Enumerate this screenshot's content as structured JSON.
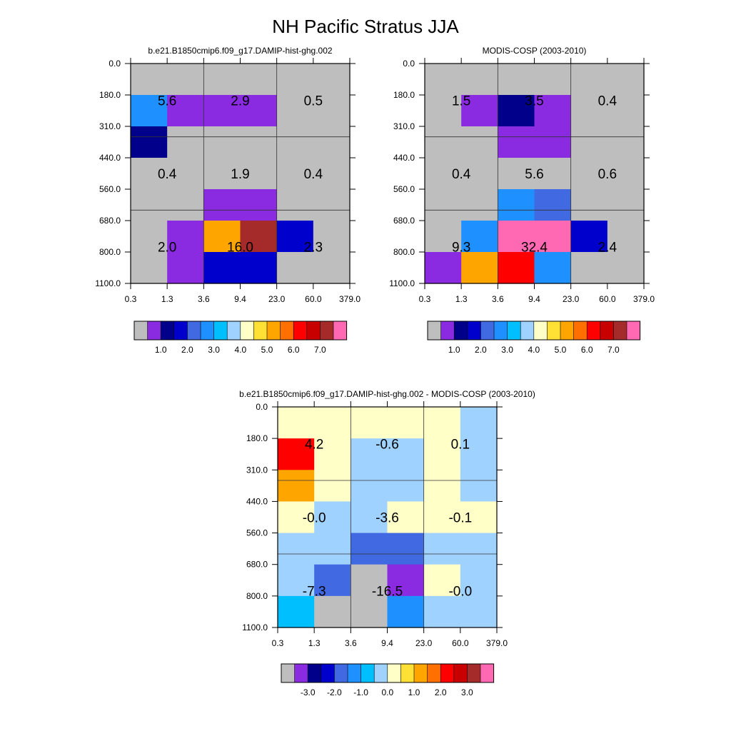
{
  "title": "NH Pacific Stratus JJA",
  "chart_data": {
    "type": "heatmap",
    "x_tick_labels": [
      "0.3",
      "1.3",
      "3.6",
      "9.4",
      "23.0",
      "60.0",
      "379.0"
    ],
    "y_tick_labels": [
      "0.0",
      "180.0",
      "310.0",
      "440.0",
      "560.0",
      "680.0",
      "800.0",
      "1100.0"
    ],
    "palette": [
      "#bebebe",
      "#8a2be2",
      "#00008b",
      "#0000cd",
      "#4169e1",
      "#1e90ff",
      "#00bfff",
      "#a0d2ff",
      "#ffffc8",
      "#ffe135",
      "#ffa500",
      "#ff7000",
      "#ff0000",
      "#c80000",
      "#a52a2a",
      "#ff69b4"
    ],
    "panels": [
      {
        "subtitle": "b.e21.B1850cmip6.f09_g17.DAMIP-hist-ghg.002",
        "colorbar_labels": [
          "1.0",
          "2.0",
          "3.0",
          "4.0",
          "5.0",
          "6.0",
          "7.0"
        ],
        "cells": [
          [
            0,
            0,
            0,
            0,
            0,
            0
          ],
          [
            5,
            1,
            1,
            1,
            0,
            0
          ],
          [
            2,
            0,
            0,
            0,
            0,
            0
          ],
          [
            0,
            0,
            0,
            0,
            0,
            0
          ],
          [
            0,
            0,
            1,
            1,
            0,
            0
          ],
          [
            0,
            1,
            10,
            14,
            3,
            0
          ],
          [
            0,
            1,
            3,
            3,
            0,
            0
          ]
        ],
        "block_values": [
          [
            "5.6",
            "2.9",
            "0.5"
          ],
          [
            "0.4",
            "1.9",
            "0.4"
          ],
          [
            "2.0",
            "16.0",
            "2.3"
          ]
        ]
      },
      {
        "subtitle": "MODIS-COSP (2003-2010)",
        "colorbar_labels": [
          "1.0",
          "2.0",
          "3.0",
          "4.0",
          "5.0",
          "6.0",
          "7.0"
        ],
        "cells": [
          [
            0,
            0,
            0,
            0,
            0,
            0
          ],
          [
            0,
            1,
            2,
            1,
            0,
            0
          ],
          [
            0,
            0,
            1,
            1,
            0,
            0
          ],
          [
            0,
            0,
            0,
            0,
            0,
            0
          ],
          [
            0,
            0,
            5,
            4,
            0,
            0
          ],
          [
            0,
            5,
            15,
            15,
            3,
            0
          ],
          [
            1,
            10,
            12,
            5,
            0,
            0
          ]
        ],
        "block_values": [
          [
            "1.5",
            "3.5",
            "0.4"
          ],
          [
            "0.4",
            "5.6",
            "0.6"
          ],
          [
            "9.3",
            "32.4",
            "2.4"
          ]
        ]
      },
      {
        "subtitle": "b.e21.B1850cmip6.f09_g17.DAMIP-hist-ghg.002 - MODIS-COSP (2003-2010)",
        "colorbar_labels": [
          "-3.0",
          "-2.0",
          "-1.0",
          "0.0",
          "1.0",
          "2.0",
          "3.0"
        ],
        "cells": [
          [
            8,
            8,
            8,
            8,
            8,
            7
          ],
          [
            12,
            8,
            7,
            7,
            8,
            7
          ],
          [
            10,
            8,
            7,
            7,
            8,
            7
          ],
          [
            8,
            7,
            7,
            8,
            8,
            8
          ],
          [
            7,
            7,
            4,
            4,
            7,
            7
          ],
          [
            7,
            4,
            0,
            1,
            8,
            7
          ],
          [
            6,
            0,
            0,
            5,
            7,
            7
          ]
        ],
        "block_values": [
          [
            "4.2",
            "-0.6",
            "0.1"
          ],
          [
            "-0.0",
            "-3.6",
            "-0.1"
          ],
          [
            "-7.3",
            "-16.5",
            "-0.0"
          ]
        ]
      }
    ]
  }
}
